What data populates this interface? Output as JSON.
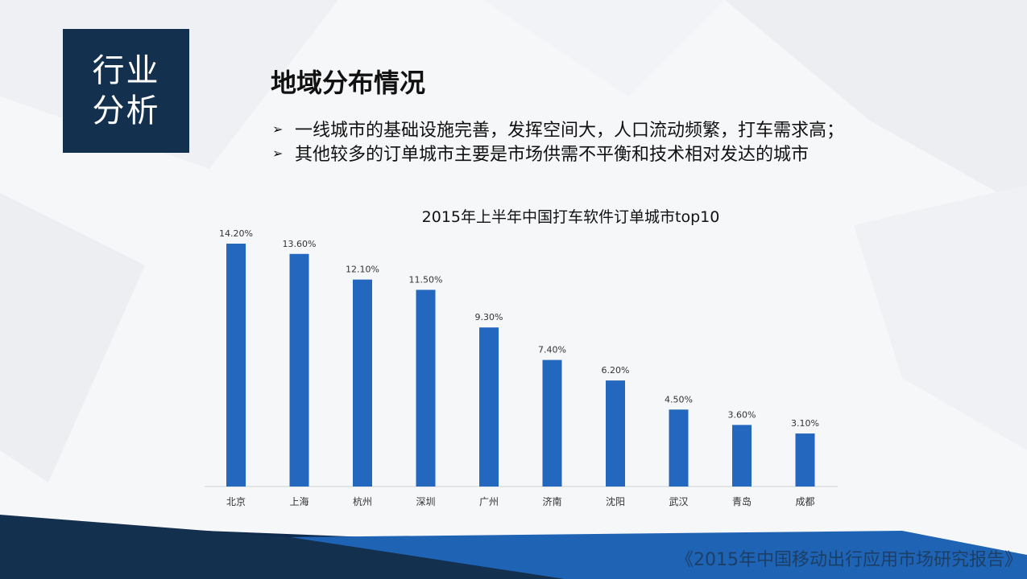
{
  "section_badge": {
    "line1": "行业",
    "line2": "分析"
  },
  "title": "地域分布情况",
  "bullets": [
    {
      "icon": "arrow-bullet-icon",
      "text": "一线城市的基础设施完善，发挥空间大，人口流动频繁，打车需求高；"
    },
    {
      "icon": "arrow-bullet-icon",
      "text": "其他较多的订单城市主要是市场供需不平衡和技术相对发达的城市"
    }
  ],
  "colors": {
    "bar": "#2367be",
    "badge": "#13304f",
    "footer_band": "#0f2a4c",
    "footer_accent": "#1f63b5"
  },
  "chart_data": {
    "type": "bar",
    "title": "2015年上半年中国打车软件订单城市top10",
    "categories": [
      "北京",
      "上海",
      "杭州",
      "深圳",
      "广州",
      "济南",
      "沈阳",
      "武汉",
      "青岛",
      "成都"
    ],
    "values": [
      14.2,
      13.6,
      12.1,
      11.5,
      9.3,
      7.4,
      6.2,
      4.5,
      3.6,
      3.1
    ],
    "labels": [
      "14.20%",
      "13.60%",
      "12.10%",
      "11.50%",
      "9.30%",
      "7.40%",
      "6.20%",
      "4.50%",
      "3.60%",
      "3.10%"
    ],
    "unit": "%",
    "ylim": [
      0,
      14.2
    ],
    "grid": false,
    "legend": "none"
  },
  "footer": "《2015年中国移动出行应用市场研究报告》"
}
